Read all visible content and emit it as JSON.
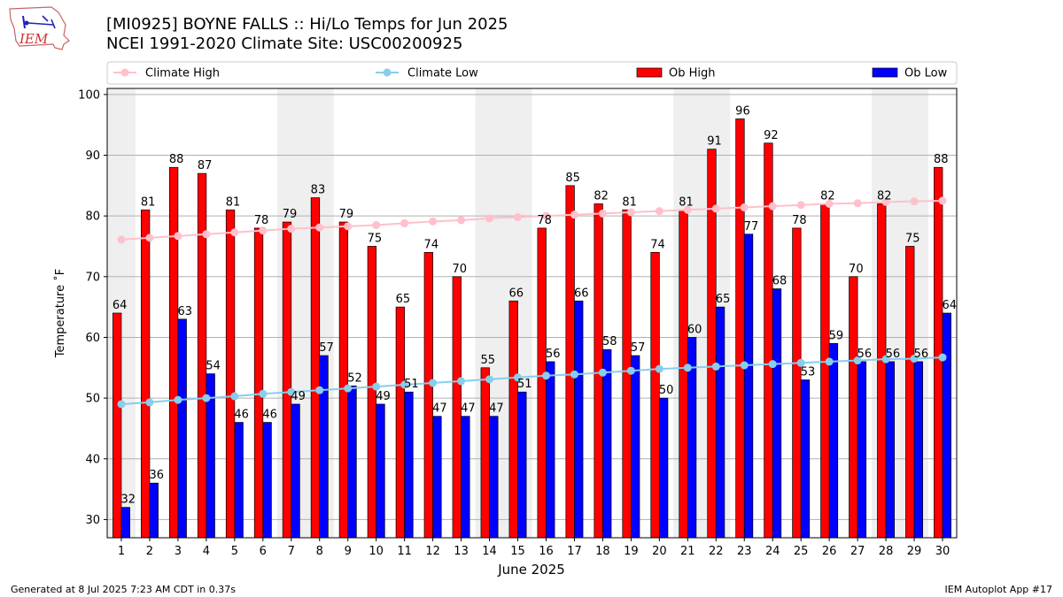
{
  "header": {
    "title_line1": "[MI0925] BOYNE FALLS :: Hi/Lo Temps for Jun 2025",
    "title_line2": "NCEI 1991-2020 Climate Site: USC00200925",
    "logo_text": "IEM"
  },
  "footer": {
    "left": "Generated at 8 Jul 2025 7:23 AM CDT in 0.37s",
    "right": "IEM Autoplot App #17"
  },
  "chart_data": {
    "type": "bar",
    "xlabel": "June 2025",
    "ylabel": "Temperature ˚F",
    "ylim": [
      27,
      101
    ],
    "yticks": [
      30,
      40,
      50,
      60,
      70,
      80,
      90,
      100
    ],
    "grid": true,
    "legend": "top",
    "categories": [
      "1",
      "2",
      "3",
      "4",
      "5",
      "6",
      "7",
      "8",
      "9",
      "10",
      "11",
      "12",
      "13",
      "14",
      "15",
      "16",
      "17",
      "18",
      "19",
      "20",
      "21",
      "22",
      "23",
      "24",
      "25",
      "26",
      "27",
      "28",
      "29",
      "30"
    ],
    "weekend_shading_days": [
      [
        1,
        1
      ],
      [
        7,
        8
      ],
      [
        14,
        15
      ],
      [
        21,
        22
      ],
      [
        28,
        29
      ]
    ],
    "series": [
      {
        "name": "Ob High",
        "kind": "bar",
        "color": "#ff0000",
        "values": [
          64,
          81,
          88,
          87,
          81,
          78,
          79,
          83,
          79,
          75,
          65,
          74,
          70,
          55,
          66,
          78,
          85,
          82,
          81,
          74,
          81,
          91,
          96,
          92,
          78,
          82,
          70,
          82,
          75,
          88
        ]
      },
      {
        "name": "Ob Low",
        "kind": "bar",
        "color": "#0000ff",
        "values": [
          32,
          36,
          63,
          54,
          46,
          46,
          49,
          57,
          52,
          49,
          51,
          47,
          47,
          47,
          51,
          56,
          66,
          58,
          57,
          50,
          60,
          65,
          77,
          68,
          53,
          59,
          56,
          56,
          56,
          64
        ]
      },
      {
        "name": "Climate High",
        "kind": "line",
        "color": "#ffc0cb",
        "values": [
          76.1,
          76.4,
          76.7,
          77.0,
          77.3,
          77.6,
          77.9,
          78.1,
          78.3,
          78.5,
          78.8,
          79.1,
          79.3,
          79.6,
          79.8,
          80.0,
          80.2,
          80.4,
          80.6,
          80.8,
          81.0,
          81.2,
          81.4,
          81.6,
          81.8,
          82.0,
          82.1,
          82.3,
          82.4,
          82.5
        ]
      },
      {
        "name": "Climate Low",
        "kind": "line",
        "color": "#87ceeb",
        "values": [
          49.0,
          49.3,
          49.7,
          50.0,
          50.3,
          50.7,
          51.0,
          51.3,
          51.6,
          51.9,
          52.2,
          52.5,
          52.8,
          53.1,
          53.4,
          53.7,
          53.9,
          54.2,
          54.5,
          54.8,
          55.0,
          55.2,
          55.4,
          55.6,
          55.8,
          56.0,
          56.2,
          56.4,
          56.5,
          56.7
        ]
      }
    ]
  }
}
